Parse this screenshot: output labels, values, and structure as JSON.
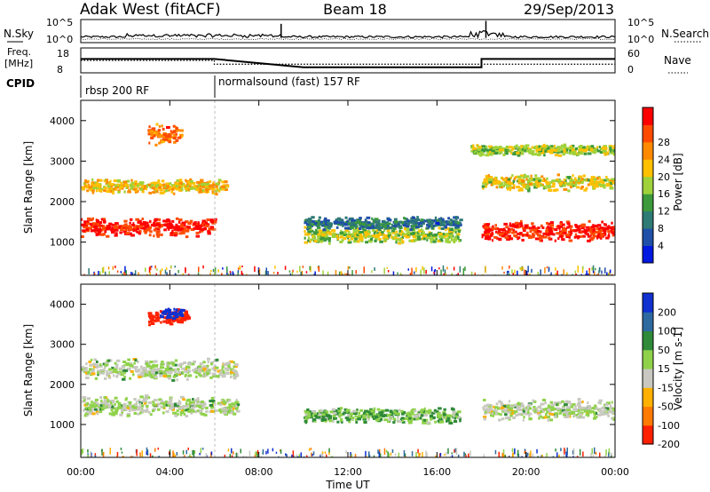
{
  "header": {
    "radar": "Adak West (fitACF)",
    "beam": "Beam 18",
    "date": "29/Sep/2013"
  },
  "noise_panel": {
    "left_label": "N.Sky",
    "right_label": "N.Search",
    "left_ticks": [
      "10^5",
      "10^0"
    ],
    "right_ticks": [
      "10^5",
      "10^0"
    ]
  },
  "freq_panel": {
    "left_label_1": "Freq.",
    "left_label_2": "[MHz]",
    "right_label": "Nave",
    "left_ticks": [
      "18",
      "8"
    ],
    "right_ticks": [
      "60",
      "0"
    ]
  },
  "cpid": {
    "label": "CPID",
    "modes": [
      "rbsp 200 RF",
      "normalsound (fast) 157 RF"
    ]
  },
  "x_axis": {
    "ticks": [
      "00:00",
      "04:00",
      "08:00",
      "12:00",
      "16:00",
      "20:00",
      "00:00"
    ],
    "label": "Time UT"
  },
  "power_panel": {
    "ylabel": "Slant Range [km]",
    "yticks": [
      "1000",
      "2000",
      "3000",
      "4000"
    ],
    "colorbar_label": "Power [dB]",
    "colorbar_ticks": [
      "4",
      "8",
      "12",
      "16",
      "20",
      "24",
      "28"
    ],
    "colors": [
      "#0018e0",
      "#1f4fa8",
      "#2e7a74",
      "#3c9a3c",
      "#9fd23a",
      "#ffc000",
      "#ff8a00",
      "#ff4a00",
      "#ff0000"
    ]
  },
  "velocity_panel": {
    "ylabel": "Slant Range [km]",
    "yticks": [
      "1000",
      "2000",
      "3000",
      "4000"
    ],
    "colorbar_label": "Velocity [m s-1]",
    "colorbar_ticks": [
      "200",
      "100",
      "50",
      "15",
      "-15",
      "-50",
      "-100",
      "-200"
    ],
    "colors": [
      "#1030d0",
      "#2e6aa0",
      "#2f8a3a",
      "#8fd24a",
      "#c8c8c0",
      "#ffb000",
      "#ff7a00",
      "#ff2000"
    ]
  },
  "chart_data": [
    {
      "type": "line",
      "title": "N.Sky / N.Search",
      "x_range": [
        "00:00",
        "00:00"
      ],
      "y_scale": "log",
      "ylim": [
        "10^0",
        "10^5"
      ],
      "series": [
        {
          "name": "N.Sky"
        },
        {
          "name": "N.Search"
        }
      ]
    },
    {
      "type": "line",
      "title": "Freq. / Nave",
      "series": [
        {
          "name": "Freq. [MHz]",
          "x": [
            "00:00",
            "06:00",
            "06:00",
            "10:00",
            "10:00",
            "18:00",
            "18:00",
            "24:00"
          ],
          "values": [
            13.6,
            13.6,
            13.6,
            10.0,
            10.0,
            10.0,
            13.6,
            13.6
          ]
        },
        {
          "name": "Nave",
          "x": [
            "00:00",
            "06:00",
            "06:00",
            "24:00"
          ],
          "values": [
            30,
            30,
            20,
            20
          ]
        }
      ]
    },
    {
      "type": "heatmap",
      "quantity": "Power [dB]",
      "x_range_hours": [
        0,
        24
      ],
      "ylim": [
        180,
        4500
      ],
      "color_range": [
        0,
        32
      ],
      "features": [
        {
          "t0": 0.0,
          "t1": 6.0,
          "range": 1400,
          "halfwidth": 180,
          "level": 30
        },
        {
          "t0": 0.0,
          "t1": 6.5,
          "range": 2400,
          "halfwidth": 140,
          "level": 20
        },
        {
          "t0": 3.0,
          "t1": 4.5,
          "range": 3700,
          "halfwidth": 200,
          "level": 24
        },
        {
          "t0": 10.0,
          "t1": 17.0,
          "range": 1200,
          "halfwidth": 150,
          "level": 16
        },
        {
          "t0": 10.0,
          "t1": 17.0,
          "range": 1500,
          "halfwidth": 120,
          "level": 8
        },
        {
          "t0": 18.0,
          "t1": 24.0,
          "range": 1300,
          "halfwidth": 200,
          "level": 30
        },
        {
          "t0": 18.0,
          "t1": 24.0,
          "range": 2500,
          "halfwidth": 150,
          "level": 18
        },
        {
          "t0": 17.5,
          "t1": 24.0,
          "range": 3300,
          "halfwidth": 100,
          "level": 16
        }
      ]
    },
    {
      "type": "heatmap",
      "quantity": "Velocity [m s-1]",
      "x_range_hours": [
        0,
        24
      ],
      "ylim": [
        180,
        4500
      ],
      "color_range": [
        -200,
        200
      ],
      "features": [
        {
          "t0": 0.0,
          "t1": 7.0,
          "range": 1500,
          "halfwidth": 200,
          "level": 0
        },
        {
          "t0": 0.0,
          "t1": 7.0,
          "range": 2400,
          "halfwidth": 200,
          "level": 0
        },
        {
          "t0": 3.0,
          "t1": 4.8,
          "range": 3700,
          "halfwidth": 150,
          "level": -200
        },
        {
          "t0": 3.5,
          "t1": 4.5,
          "range": 3800,
          "halfwidth": 100,
          "level": 200
        },
        {
          "t0": 10.0,
          "t1": 17.0,
          "range": 1250,
          "halfwidth": 150,
          "level": 40
        },
        {
          "t0": 18.0,
          "t1": 24.0,
          "range": 1400,
          "halfwidth": 200,
          "level": 0
        }
      ]
    }
  ]
}
